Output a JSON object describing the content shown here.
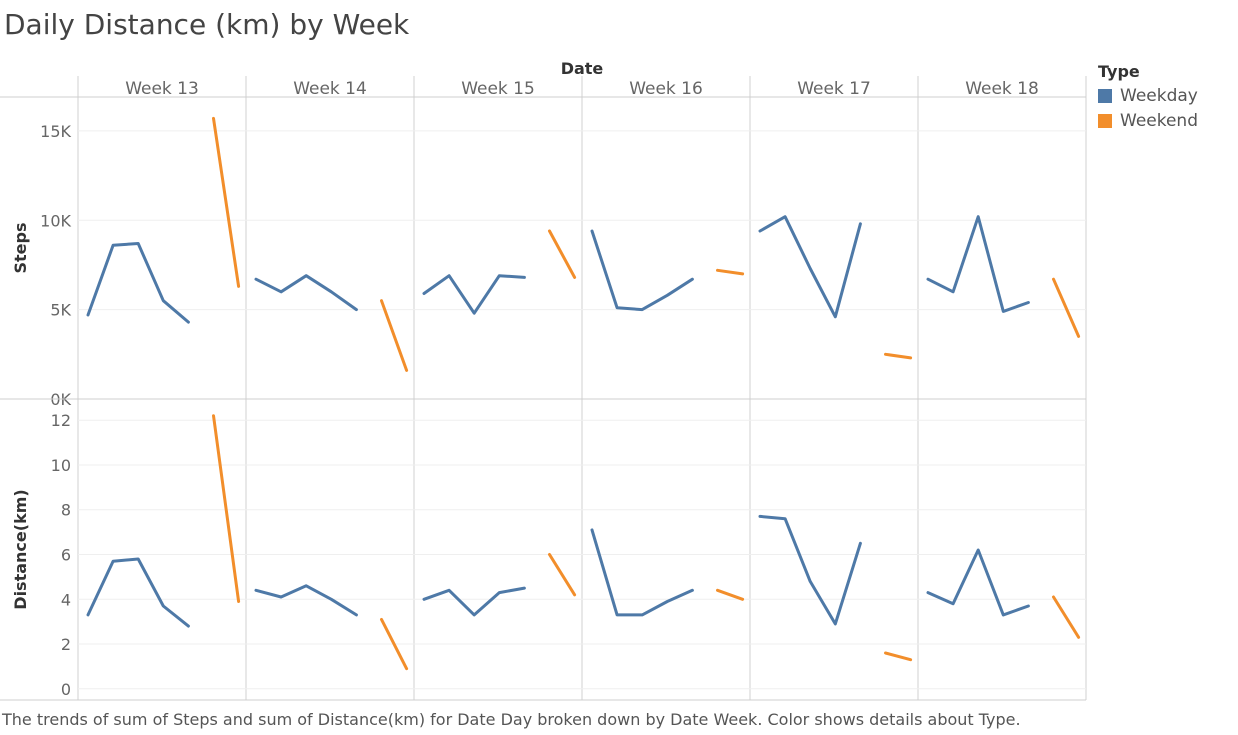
{
  "title": "Daily Distance (km) by Week",
  "caption": "The trends of sum of Steps and sum of Distance(km) for Date Day broken down by Date Week.  Color shows details about Type.",
  "colors": {
    "weekday": "#4e79a7",
    "weekend": "#f28e2b"
  },
  "legend": {
    "title": "Type",
    "items": [
      {
        "label": "Weekday",
        "color": "#4e79a7"
      },
      {
        "label": "Weekend",
        "color": "#f28e2b"
      }
    ]
  },
  "chart_data": {
    "type": "line",
    "column_header": "Date",
    "weeks": [
      "Week 13",
      "Week 14",
      "Week 15",
      "Week 16",
      "Week 17",
      "Week 18"
    ],
    "day_positions": 7,
    "panels": [
      {
        "ylabel": "Steps",
        "ylim": [
          0,
          16000
        ],
        "ticks": [
          0,
          5000,
          10000,
          15000
        ],
        "tick_labels": [
          "0K",
          "5K",
          "10K",
          "15K"
        ],
        "series": [
          {
            "name": "Weekday",
            "color": "#4e79a7",
            "weeks": [
              {
                "days": [
                  0,
                  1,
                  2,
                  3,
                  4
                ],
                "values": [
                  4700,
                  8600,
                  8700,
                  5500,
                  4300
                ]
              },
              {
                "days": [
                  0,
                  1,
                  2,
                  3,
                  4
                ],
                "values": [
                  6700,
                  6000,
                  6900,
                  6000,
                  5000
                ]
              },
              {
                "days": [
                  0,
                  1,
                  2,
                  3,
                  4
                ],
                "values": [
                  5900,
                  6900,
                  4800,
                  6900,
                  6800
                ]
              },
              {
                "days": [
                  0,
                  1,
                  2,
                  3,
                  4
                ],
                "values": [
                  9400,
                  5100,
                  5000,
                  5800,
                  6700
                ]
              },
              {
                "days": [
                  0,
                  1,
                  2,
                  3,
                  4
                ],
                "values": [
                  9400,
                  10200,
                  7300,
                  4600,
                  9800
                ]
              },
              {
                "days": [
                  0,
                  1,
                  2,
                  3,
                  4
                ],
                "values": [
                  6700,
                  6000,
                  10200,
                  4900,
                  5400
                ]
              }
            ]
          },
          {
            "name": "Weekend",
            "color": "#f28e2b",
            "weeks": [
              {
                "days": [
                  5,
                  6
                ],
                "values": [
                  15700,
                  6300
                ]
              },
              {
                "days": [
                  5,
                  6
                ],
                "values": [
                  5500,
                  1600
                ]
              },
              {
                "days": [
                  5,
                  6
                ],
                "values": [
                  9400,
                  6800
                ]
              },
              {
                "days": [
                  5,
                  6
                ],
                "values": [
                  7200,
                  7000
                ]
              },
              {
                "days": [
                  5,
                  6
                ],
                "values": [
                  2500,
                  2300
                ]
              },
              {
                "days": [
                  5,
                  6
                ],
                "values": [
                  6700,
                  3500
                ]
              }
            ]
          }
        ]
      },
      {
        "ylabel": "Distance(km)",
        "ylim": [
          -0.5,
          12.5
        ],
        "ticks": [
          0,
          2,
          4,
          6,
          8,
          10,
          12
        ],
        "tick_labels": [
          "0",
          "2",
          "4",
          "6",
          "8",
          "10",
          "12"
        ],
        "series": [
          {
            "name": "Weekday",
            "color": "#4e79a7",
            "weeks": [
              {
                "days": [
                  0,
                  1,
                  2,
                  3,
                  4
                ],
                "values": [
                  3.3,
                  5.7,
                  5.8,
                  3.7,
                  2.8
                ]
              },
              {
                "days": [
                  0,
                  1,
                  2,
                  3,
                  4
                ],
                "values": [
                  4.4,
                  4.1,
                  4.6,
                  4.0,
                  3.3
                ]
              },
              {
                "days": [
                  0,
                  1,
                  2,
                  3,
                  4
                ],
                "values": [
                  4.0,
                  4.4,
                  3.3,
                  4.3,
                  4.5
                ]
              },
              {
                "days": [
                  0,
                  1,
                  2,
                  3,
                  4
                ],
                "values": [
                  7.1,
                  3.3,
                  3.3,
                  3.9,
                  4.4
                ]
              },
              {
                "days": [
                  0,
                  1,
                  2,
                  3,
                  4
                ],
                "values": [
                  7.7,
                  7.6,
                  4.8,
                  2.9,
                  6.5
                ]
              },
              {
                "days": [
                  0,
                  1,
                  2,
                  3,
                  4
                ],
                "values": [
                  4.3,
                  3.8,
                  6.2,
                  3.3,
                  3.7
                ]
              }
            ]
          },
          {
            "name": "Weekend",
            "color": "#f28e2b",
            "weeks": [
              {
                "days": [
                  5,
                  6
                ],
                "values": [
                  12.2,
                  3.9
                ]
              },
              {
                "days": [
                  5,
                  6
                ],
                "values": [
                  3.1,
                  0.9
                ]
              },
              {
                "days": [
                  5,
                  6
                ],
                "values": [
                  6.0,
                  4.2
                ]
              },
              {
                "days": [
                  5,
                  6
                ],
                "values": [
                  4.4,
                  4.0
                ]
              },
              {
                "days": [
                  5,
                  6
                ],
                "values": [
                  1.6,
                  1.3
                ]
              },
              {
                "days": [
                  5,
                  6
                ],
                "values": [
                  4.1,
                  2.3
                ]
              }
            ]
          }
        ]
      }
    ]
  }
}
